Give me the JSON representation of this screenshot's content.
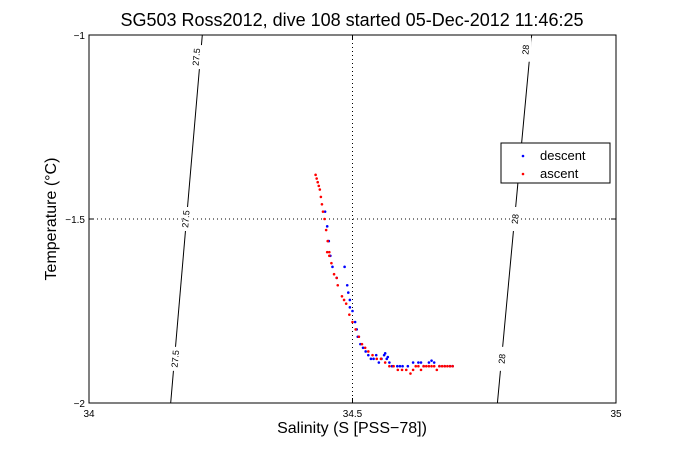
{
  "chart_data": {
    "type": "scatter",
    "title": "SG503 Ross2012, dive 108 started 05-Dec-2012 11:46:25",
    "xlabel": "Salinity (S [PSS−78])",
    "ylabel": "Temperature (°C)",
    "xlim": [
      34,
      35
    ],
    "ylim": [
      -2,
      -1
    ],
    "xticks": [
      34,
      34.5,
      35
    ],
    "xtick_labels": [
      "34",
      "34.5",
      "35"
    ],
    "yticks": [
      -2,
      -1.5,
      -1
    ],
    "ytick_labels": [
      "−2",
      "−1.5",
      "−1"
    ],
    "grid": "dotted at 34.5 and -1.5",
    "legend_position": "right",
    "contours": [
      {
        "label": "27.5",
        "points": [
          [
            34.215,
            -1.0
          ],
          [
            34.155,
            -2.0
          ]
        ],
        "labels_at": [
          [
            34.205,
            -1.06
          ],
          [
            34.185,
            -1.5
          ],
          [
            34.165,
            -1.88
          ]
        ]
      },
      {
        "label": "28",
        "points": [
          [
            34.84,
            -1.0
          ],
          [
            34.775,
            -2.0
          ]
        ],
        "labels_at": [
          [
            34.83,
            -1.04
          ],
          [
            34.81,
            -1.5
          ],
          [
            34.785,
            -1.88
          ]
        ]
      }
    ],
    "series": [
      {
        "name": "descent",
        "color": "#0000ff",
        "points": [
          [
            34.448,
            -1.48
          ],
          [
            34.452,
            -1.52
          ],
          [
            34.455,
            -1.56
          ],
          [
            34.458,
            -1.6
          ],
          [
            34.462,
            -1.63
          ],
          [
            34.47,
            -1.66
          ],
          [
            34.485,
            -1.63
          ],
          [
            34.49,
            -1.68
          ],
          [
            34.492,
            -1.7
          ],
          [
            34.495,
            -1.72
          ],
          [
            34.5,
            -1.75
          ],
          [
            34.505,
            -1.78
          ],
          [
            34.508,
            -1.8
          ],
          [
            34.512,
            -1.82
          ],
          [
            34.515,
            -1.84
          ],
          [
            34.52,
            -1.85
          ],
          [
            34.525,
            -1.86
          ],
          [
            34.53,
            -1.87
          ],
          [
            34.535,
            -1.88
          ],
          [
            34.54,
            -1.88
          ],
          [
            34.545,
            -1.87
          ],
          [
            34.55,
            -1.89
          ],
          [
            34.555,
            -1.88
          ],
          [
            34.56,
            -1.87
          ],
          [
            34.565,
            -1.88
          ],
          [
            34.57,
            -1.89
          ],
          [
            34.575,
            -1.9
          ],
          [
            34.585,
            -1.9
          ],
          [
            34.595,
            -1.9
          ],
          [
            34.605,
            -1.9
          ],
          [
            34.615,
            -1.89
          ],
          [
            34.625,
            -1.89
          ],
          [
            34.635,
            -1.9
          ],
          [
            34.645,
            -1.89
          ],
          [
            34.655,
            -1.89
          ],
          [
            34.665,
            -1.9
          ],
          [
            34.675,
            -1.9
          ],
          [
            34.685,
            -1.9
          ],
          [
            34.69,
            -1.9
          ],
          [
            34.51,
            -1.82
          ],
          [
            34.495,
            -1.74
          ],
          [
            34.562,
            -1.865
          ],
          [
            34.567,
            -1.875
          ],
          [
            34.59,
            -1.9
          ],
          [
            34.63,
            -1.89
          ],
          [
            34.65,
            -1.885
          ]
        ]
      },
      {
        "name": "ascent",
        "color": "#ff0000",
        "points": [
          [
            34.43,
            -1.38
          ],
          [
            34.432,
            -1.39
          ],
          [
            34.434,
            -1.4
          ],
          [
            34.436,
            -1.41
          ],
          [
            34.438,
            -1.42
          ],
          [
            34.44,
            -1.44
          ],
          [
            34.442,
            -1.46
          ],
          [
            34.444,
            -1.48
          ],
          [
            34.447,
            -1.5
          ],
          [
            34.45,
            -1.53
          ],
          [
            34.453,
            -1.56
          ],
          [
            34.456,
            -1.59
          ],
          [
            34.46,
            -1.62
          ],
          [
            34.465,
            -1.65
          ],
          [
            34.472,
            -1.68
          ],
          [
            34.48,
            -1.71
          ],
          [
            34.488,
            -1.73
          ],
          [
            34.494,
            -1.76
          ],
          [
            34.5,
            -1.78
          ],
          [
            34.506,
            -1.8
          ],
          [
            34.512,
            -1.82
          ],
          [
            34.518,
            -1.84
          ],
          [
            34.524,
            -1.85
          ],
          [
            34.53,
            -1.86
          ],
          [
            34.538,
            -1.87
          ],
          [
            34.546,
            -1.88
          ],
          [
            34.554,
            -1.88
          ],
          [
            34.562,
            -1.89
          ],
          [
            34.57,
            -1.9
          ],
          [
            34.578,
            -1.9
          ],
          [
            34.586,
            -1.91
          ],
          [
            34.594,
            -1.91
          ],
          [
            34.602,
            -1.91
          ],
          [
            34.61,
            -1.92
          ],
          [
            34.615,
            -1.91
          ],
          [
            34.62,
            -1.9
          ],
          [
            34.625,
            -1.9
          ],
          [
            34.63,
            -1.91
          ],
          [
            34.635,
            -1.9
          ],
          [
            34.64,
            -1.9
          ],
          [
            34.645,
            -1.9
          ],
          [
            34.65,
            -1.9
          ],
          [
            34.655,
            -1.9
          ],
          [
            34.66,
            -1.91
          ],
          [
            34.665,
            -1.9
          ],
          [
            34.67,
            -1.9
          ],
          [
            34.675,
            -1.9
          ],
          [
            34.68,
            -1.9
          ],
          [
            34.685,
            -1.9
          ],
          [
            34.69,
            -1.9
          ],
          [
            34.452,
            -1.59
          ],
          [
            34.456,
            -1.6
          ],
          [
            34.47,
            -1.66
          ],
          [
            34.484,
            -1.72
          ]
        ]
      }
    ]
  }
}
